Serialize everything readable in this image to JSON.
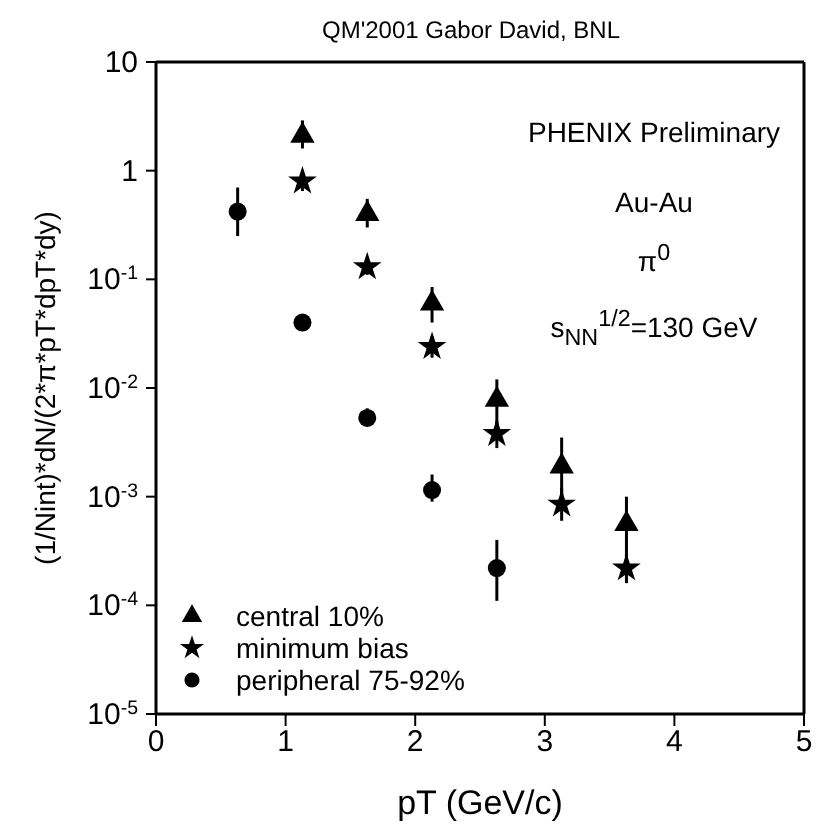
{
  "chart_data": {
    "type": "scatter",
    "title": "QM'2001 Gabor David, BNL",
    "xlabel": "pT (GeV/c)",
    "ylabel": "(1/Nint)*dN/(2*π*pT*dpT*dy)",
    "annotations": [
      "PHENIX Preliminary",
      "Au-Au",
      "π$^{0}$",
      "s$_{NN}$$^{1/2}$=130 GeV"
    ],
    "log": "y",
    "xlim": [
      0,
      5
    ],
    "xticks": [
      0,
      1,
      2,
      3,
      4,
      5
    ],
    "ylim": [
      1e-05,
      10
    ],
    "yticks": [
      {
        "value": 1e-05,
        "label": "10$^{-5}$"
      },
      {
        "value": 0.0001,
        "label": "10$^{-4}$"
      },
      {
        "value": 0.001,
        "label": "10$^{-3}$"
      },
      {
        "value": 0.01,
        "label": "10$^{-2}$"
      },
      {
        "value": 0.1,
        "label": "10$^{-1}$"
      },
      1,
      10
    ],
    "grid": false,
    "legend": "bottom left",
    "series": [
      {
        "name": "central 10%",
        "color": "#000000",
        "marker": "triangle",
        "x": [
          1.13,
          1.63,
          2.13,
          2.63,
          3.13,
          3.63
        ],
        "values": [
          2.1,
          0.4,
          0.06,
          0.0078,
          0.0019,
          0.00056
        ],
        "errors": [
          [
            1.6,
            2.9
          ],
          [
            0.3,
            0.55
          ],
          [
            0.04,
            0.085
          ],
          [
            0.004,
            0.012
          ],
          [
            0.0009,
            0.0035
          ],
          [
            0.00025,
            0.001
          ]
        ]
      },
      {
        "name": "minimum bias",
        "color": "#000000",
        "marker": "star",
        "x": [
          1.13,
          1.63,
          2.13,
          2.63,
          3.13,
          3.63
        ],
        "values": [
          0.8,
          0.13,
          0.024,
          0.0038,
          0.00085,
          0.00022
        ],
        "errors": [
          [
            0.65,
            1.0
          ],
          [
            0.11,
            0.16
          ],
          [
            0.019,
            0.03
          ],
          [
            0.0028,
            0.005
          ],
          [
            0.0006,
            0.0012
          ],
          [
            0.00016,
            0.0003
          ]
        ]
      },
      {
        "name": "peripheral 75-92%",
        "color": "#000000",
        "marker": "circle",
        "x": [
          0.63,
          1.13,
          1.63,
          2.13,
          2.63
        ],
        "values": [
          0.42,
          0.04,
          0.0053,
          0.00115,
          0.00022
        ],
        "errors": [
          [
            0.25,
            0.7
          ],
          [
            0.034,
            0.048
          ],
          [
            0.0045,
            0.0065
          ],
          [
            0.0009,
            0.0016
          ],
          [
            0.00011,
            0.0004
          ]
        ]
      }
    ]
  }
}
